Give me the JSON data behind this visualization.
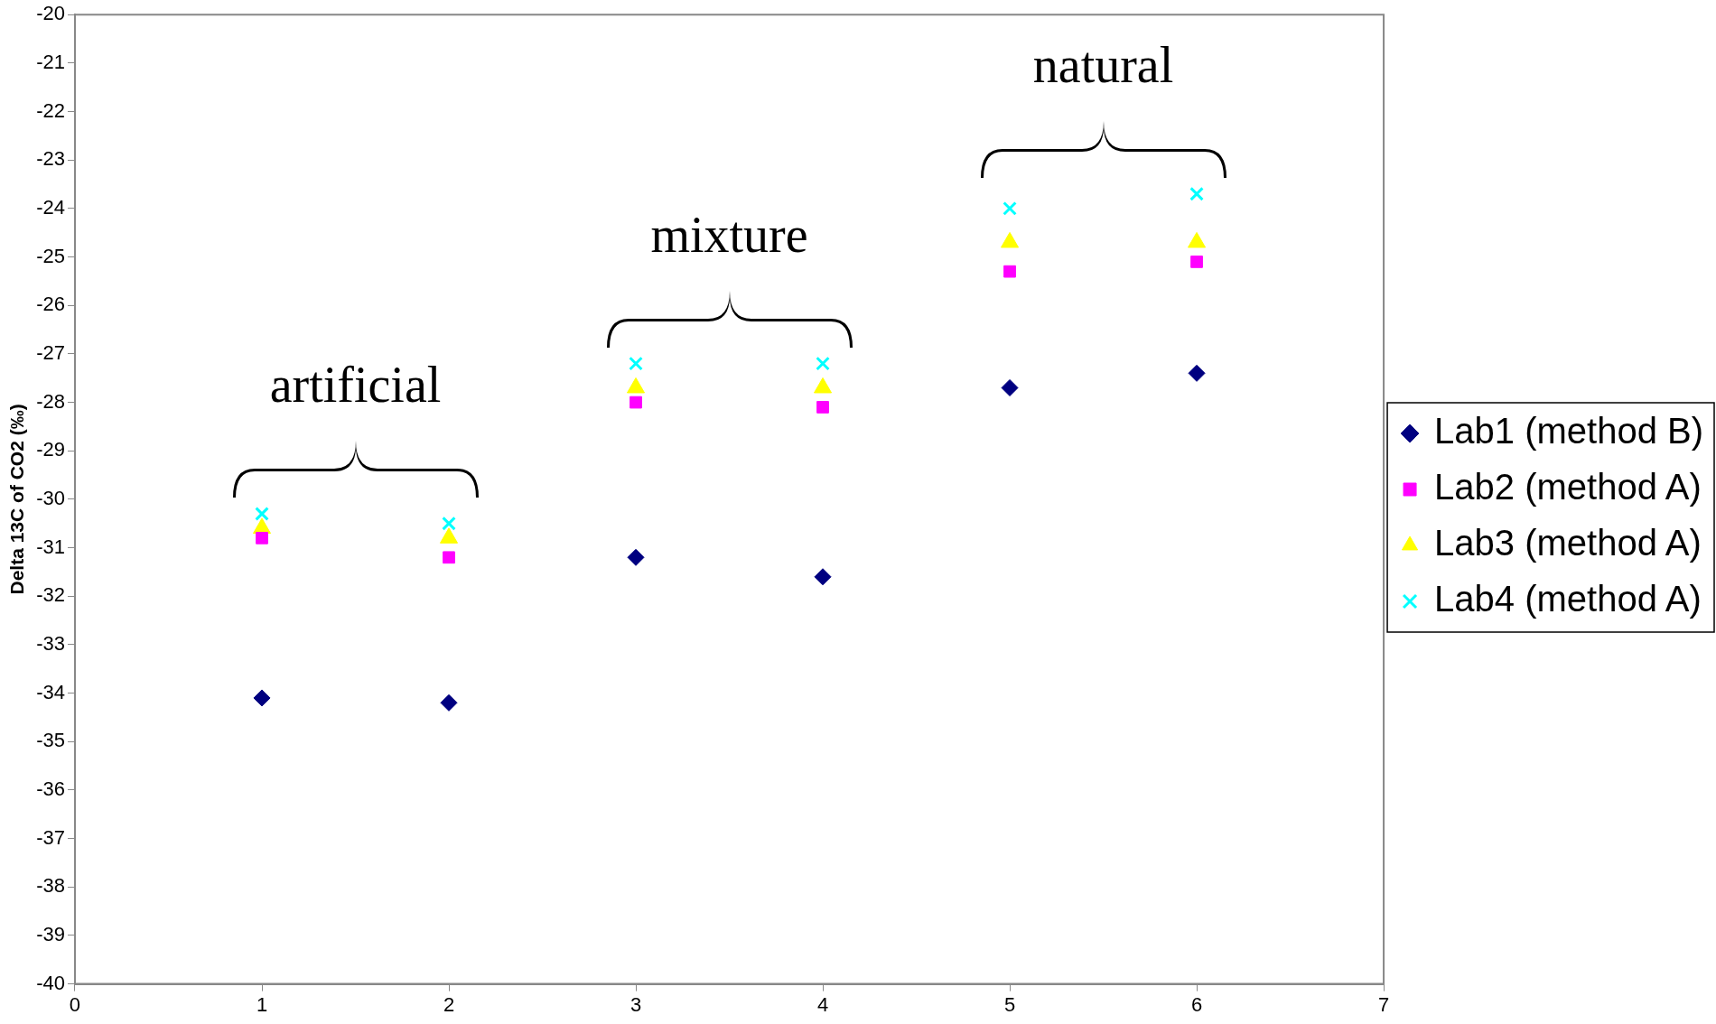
{
  "chart_data": {
    "type": "scatter",
    "ylabel": "Delta 13C of CO2 (‰)",
    "x": [
      1,
      2,
      3,
      4,
      5,
      6
    ],
    "series": [
      {
        "name": "Lab1 (method B)",
        "color": "#000080",
        "marker": "diamond",
        "values": [
          -34.1,
          -34.2,
          -31.2,
          -31.6,
          -27.7,
          -27.4
        ]
      },
      {
        "name": "Lab2 (method A)",
        "color": "#ff00ff",
        "marker": "square",
        "values": [
          -30.8,
          -31.2,
          -28.0,
          -28.1,
          -25.3,
          -25.1
        ]
      },
      {
        "name": "Lab3 (method A)",
        "color": "#ffff00",
        "marker": "triangle",
        "values": [
          -30.6,
          -30.8,
          -27.7,
          -27.7,
          -24.7,
          -24.7
        ]
      },
      {
        "name": "Lab4 (method A)",
        "color": "#00ffff",
        "marker": "cross",
        "values": [
          -30.3,
          -30.5,
          -27.2,
          -27.2,
          -24.0,
          -23.7
        ]
      }
    ],
    "annotations": [
      "artificial",
      "mixture",
      "natural"
    ],
    "xlim": [
      0,
      7
    ],
    "xticks": [
      0,
      1,
      2,
      3,
      4,
      5,
      6,
      7
    ],
    "ylim": [
      -40,
      -20
    ],
    "yticks": [
      -40,
      -39,
      -38,
      -37,
      -36,
      -35,
      -34,
      -33,
      -32,
      -31,
      -30,
      -29,
      -28,
      -27,
      -26,
      -25,
      -24,
      -23,
      -22,
      -21,
      -20
    ],
    "grid": false,
    "legend": "right"
  }
}
